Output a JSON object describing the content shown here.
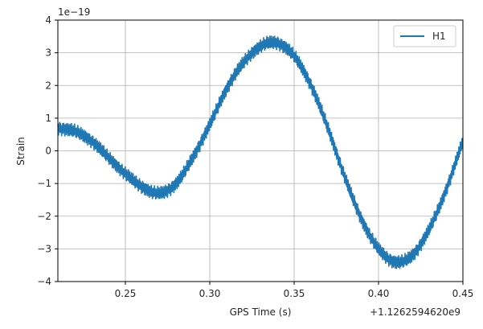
{
  "chart_data": {
    "type": "line",
    "title": "",
    "xlabel": "GPS Time (s)",
    "ylabel": "Strain",
    "x_offset_label": "+1.1262594620e9",
    "y_scale_label": "1e−19",
    "xlim": [
      0.21,
      0.45
    ],
    "ylim": [
      -4,
      4
    ],
    "x_ticks": [
      0.25,
      0.3,
      0.35,
      0.4,
      0.45
    ],
    "x_tick_labels": [
      "0.25",
      "0.30",
      "0.35",
      "0.40",
      "0.45"
    ],
    "y_ticks": [
      -4,
      -3,
      -2,
      -1,
      0,
      1,
      2,
      3,
      4
    ],
    "y_tick_labels": [
      "−4",
      "−3",
      "−2",
      "−1",
      "0",
      "1",
      "2",
      "3",
      "4"
    ],
    "grid": true,
    "legend_position": "top-right",
    "series": [
      {
        "name": "H1",
        "color": "#1f77b4",
        "x": [
          0.21,
          0.22,
          0.23,
          0.24,
          0.25,
          0.26,
          0.27,
          0.28,
          0.29,
          0.3,
          0.31,
          0.32,
          0.33,
          0.34,
          0.35,
          0.36,
          0.37,
          0.38,
          0.39,
          0.4,
          0.41,
          0.42,
          0.43,
          0.44,
          0.45
        ],
        "values": [
          0.7,
          0.6,
          0.3,
          -0.2,
          -0.7,
          -1.1,
          -1.3,
          -1.0,
          -0.2,
          0.8,
          1.9,
          2.7,
          3.2,
          3.3,
          2.9,
          2.0,
          0.7,
          -0.8,
          -2.1,
          -3.0,
          -3.4,
          -3.2,
          -2.4,
          -1.2,
          0.3
        ]
      }
    ]
  }
}
